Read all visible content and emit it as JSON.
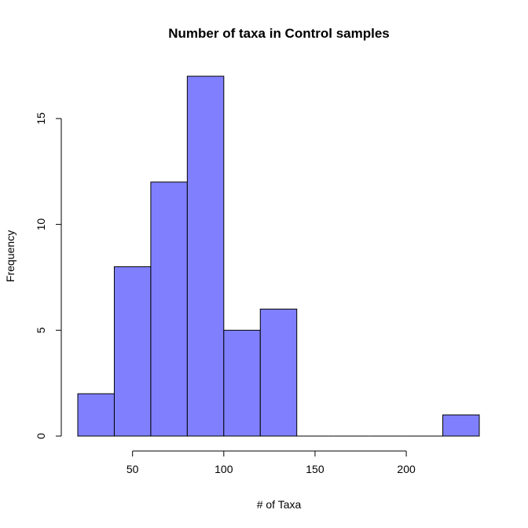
{
  "chart_data": {
    "type": "bar",
    "subtype": "histogram",
    "title": "Number of taxa in Control samples",
    "xlabel": "# of Taxa",
    "ylabel": "Frequency",
    "bar_color": "#8080ff",
    "bins": [
      {
        "start": 20,
        "end": 40,
        "count": 2
      },
      {
        "start": 40,
        "end": 60,
        "count": 8
      },
      {
        "start": 60,
        "end": 80,
        "count": 12
      },
      {
        "start": 80,
        "end": 100,
        "count": 17
      },
      {
        "start": 100,
        "end": 120,
        "count": 5
      },
      {
        "start": 120,
        "end": 140,
        "count": 6
      },
      {
        "start": 140,
        "end": 160,
        "count": 0
      },
      {
        "start": 160,
        "end": 180,
        "count": 0
      },
      {
        "start": 180,
        "end": 200,
        "count": 0
      },
      {
        "start": 200,
        "end": 220,
        "count": 0
      },
      {
        "start": 220,
        "end": 240,
        "count": 1
      }
    ],
    "xlim": [
      20,
      240
    ],
    "ylim": [
      0,
      17
    ],
    "x_ticks": [
      50,
      100,
      150,
      200
    ],
    "y_ticks": [
      0,
      5,
      10,
      15
    ],
    "grid": false,
    "legend": "none"
  }
}
